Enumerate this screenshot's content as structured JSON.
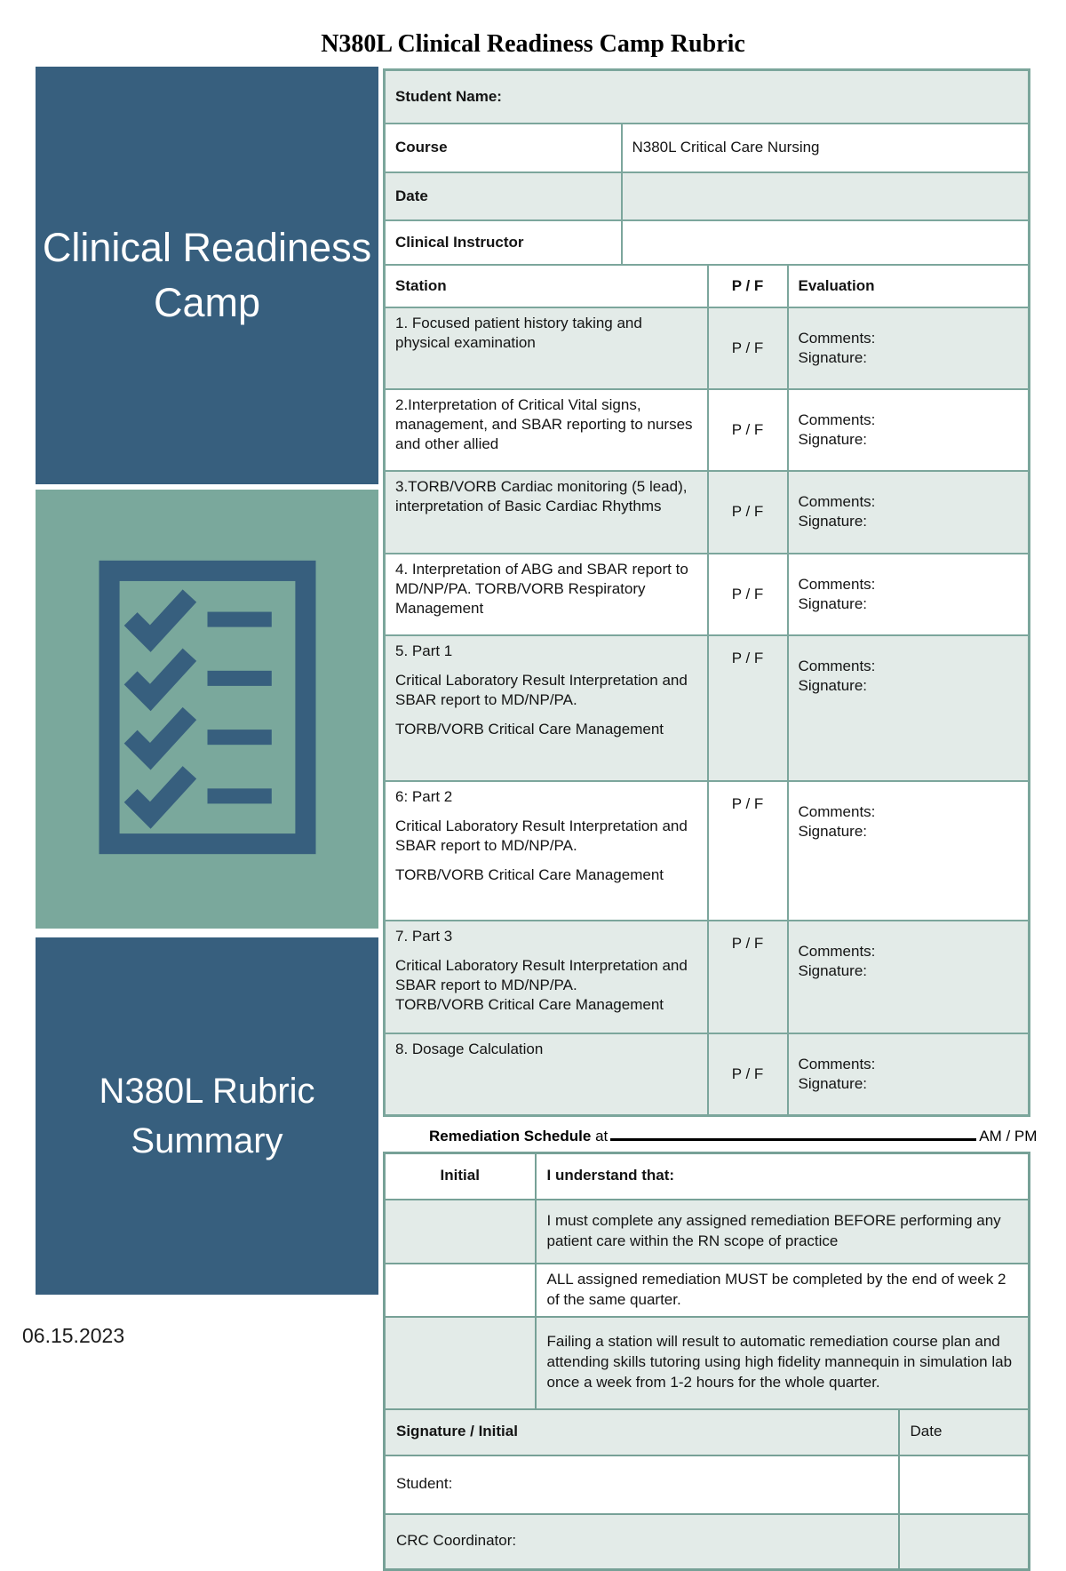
{
  "page": {
    "title": "N380L Clinical Readiness Camp Rubric",
    "footer_date": "06.15.2023"
  },
  "colors": {
    "dark_blue": "#375f7e",
    "sage_green": "#7aa89c",
    "cell_tint": "#e3ebe8",
    "table_border": "#7ca69c"
  },
  "sidebar": {
    "top_banner": "Clinical Readiness Camp",
    "bottom_banner": "N380L Rubric Summary",
    "icon": "checklist-icon"
  },
  "info_rows": [
    {
      "label": "Student Name:",
      "value": "",
      "full_width": true,
      "shade": true
    },
    {
      "label": "Course",
      "value": "N380L Critical Care Nursing",
      "full_width": false,
      "shade": false
    },
    {
      "label": "Date",
      "value": "",
      "full_width": false,
      "shade": true
    },
    {
      "label": "Clinical Instructor",
      "value": "",
      "full_width": false,
      "shade": false
    }
  ],
  "station_table": {
    "headers": {
      "station": "Station",
      "pf": "P / F",
      "evaluation": "Evaluation"
    },
    "rows": [
      {
        "station": "1. Focused patient history taking and physical examination",
        "pf": "P / F",
        "evaluation": "Comments:\nSignature:",
        "shade": true,
        "tall": false
      },
      {
        "station": "2.Interpretation of Critical Vital signs, management, and SBAR reporting to nurses and other allied",
        "pf": "P / F",
        "evaluation": "Comments:\nSignature:",
        "shade": false,
        "tall": false
      },
      {
        "station": "3.TORB/VORB Cardiac monitoring (5 lead), interpretation of Basic Cardiac Rhythms",
        "pf": "P / F",
        "evaluation": "Comments:\nSignature:",
        "shade": true,
        "tall": false
      },
      {
        "station": "4. Interpretation of ABG and SBAR report to MD/NP/PA. TORB/VORB Respiratory Management",
        "pf": "P / F",
        "evaluation": "Comments:\nSignature:",
        "shade": false,
        "tall": false
      },
      {
        "station": "5. Part 1\n\nCritical Laboratory Result Interpretation and SBAR report to MD/NP/PA.\n\nTORB/VORB Critical Care Management",
        "pf": "P / F",
        "evaluation": "Comments:\nSignature:",
        "shade": true,
        "tall": true
      },
      {
        "station": "6: Part 2\n\nCritical Laboratory Result Interpretation and SBAR report to MD/NP/PA.\n\nTORB/VORB Critical Care Management",
        "pf": "P / F",
        "evaluation": "Comments:\nSignature:",
        "shade": false,
        "tall": true
      },
      {
        "station": "7. Part 3\n\nCritical Laboratory Result Interpretation and SBAR report to MD/NP/PA.\nTORB/VORB Critical Care Management",
        "pf": "P / F",
        "evaluation": "Comments:\nSignature:",
        "shade": true,
        "tall": true
      },
      {
        "station": "8. Dosage Calculation",
        "pf": "P / F",
        "evaluation": "Comments:\nSignature:",
        "shade": true,
        "tall": false
      }
    ]
  },
  "remediation": {
    "label": "Remediation Schedule",
    "connector": "at",
    "ampm": "AM / PM"
  },
  "understand_table": {
    "initial_header": "Initial",
    "statement_header": "I understand that:",
    "statements": [
      {
        "text": "I must complete any assigned remediation BEFORE performing any patient care within the RN scope of practice",
        "shade": true
      },
      {
        "text": "ALL assigned remediation MUST be completed by the end of week 2 of the same quarter.",
        "shade": false
      },
      {
        "text": "Failing a station will result to automatic remediation course plan and attending skills tutoring using high fidelity mannequin in simulation lab once a week from 1-2 hours for the whole quarter.",
        "shade": true
      }
    ],
    "signature_header": "Signature / Initial",
    "date_header": "Date",
    "signature_rows": [
      {
        "label": "Student:",
        "shade": false
      },
      {
        "label": "CRC Coordinator:",
        "shade": true
      }
    ]
  }
}
